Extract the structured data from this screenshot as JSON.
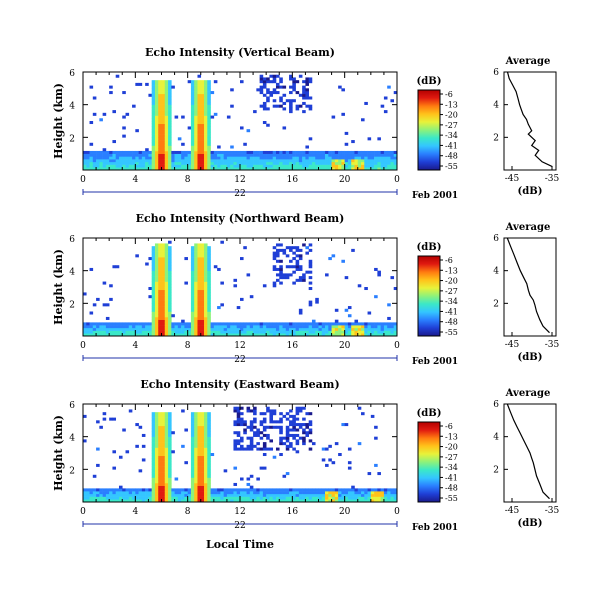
{
  "colors": {
    "colormap": [
      "#1a1a8c",
      "#1f3fd6",
      "#2a7fff",
      "#34c6ff",
      "#3be8c8",
      "#8ef27a",
      "#e8f23a",
      "#ffc21a",
      "#ff7a10",
      "#e01a10",
      "#b30000"
    ],
    "frame": "#000000",
    "blue_tick": "#2233aa"
  },
  "common": {
    "time_ticks": [
      "0",
      "4",
      "8",
      "12",
      "16",
      "20",
      "0"
    ],
    "date_label": "22",
    "date_suffix": "Feb 2001",
    "height_ticks": [
      "2",
      "4",
      "6"
    ],
    "height_label": "Height (km)",
    "colorbar_unit": "(dB)",
    "colorbar_ticks": [
      "-6",
      "-13",
      "-20",
      "-27",
      "-34",
      "-41",
      "-48",
      "-55"
    ],
    "avg_title": "Average",
    "avg_unit": "(dB)",
    "avg_y_ticks": [
      "2",
      "4",
      "6"
    ],
    "xlabel": "Local Time"
  },
  "chart_data": [
    {
      "type": "heatmap",
      "title": "Echo Intensity (Vertical Beam)",
      "xlabel": "",
      "ylabel": "Height (km)",
      "xlim": [
        0,
        24
      ],
      "ylim": [
        0,
        6
      ],
      "zlim": [
        -55,
        -6
      ],
      "zlabel": "(dB)",
      "features": {
        "plumes": [
          {
            "center_hour": 6.0,
            "top_km": 5.5
          },
          {
            "center_hour": 9.0,
            "top_km": 5.5
          }
        ],
        "upper_patch": {
          "hours": [
            13.5,
            17.5
          ],
          "km": [
            3.6,
            5.8
          ]
        },
        "boundary_layer_km": 1.1,
        "late_cells_hours": [
          19.5,
          21.0
        ]
      }
    },
    {
      "type": "line",
      "title": "Average",
      "xlabel": "(dB)",
      "ylabel": "",
      "xticks": [
        "-45",
        "-35"
      ],
      "xlim": [
        -48,
        -33
      ],
      "ylim": [
        0,
        6
      ],
      "x": [
        -47,
        -46.5,
        -45.5,
        -44.5,
        -44,
        -43.5,
        -43,
        -42.5,
        -41.5,
        -41,
        -40.5,
        -40,
        -41,
        -40,
        -39,
        -40,
        -38,
        -39,
        -37,
        -34
      ],
      "y": [
        6.0,
        5.6,
        5.2,
        4.8,
        4.4,
        4.0,
        3.7,
        3.4,
        3.1,
        2.8,
        2.6,
        2.4,
        2.2,
        2.0,
        1.8,
        1.5,
        1.2,
        0.9,
        0.5,
        0.2
      ]
    },
    {
      "type": "heatmap",
      "title": "Echo Intensity (Northward Beam)",
      "xlabel": "",
      "ylabel": "Height (km)",
      "xlim": [
        0,
        24
      ],
      "ylim": [
        0,
        6
      ],
      "zlim": [
        -55,
        -6
      ],
      "zlabel": "(dB)",
      "features": {
        "plumes": [
          {
            "center_hour": 6.0,
            "top_km": 5.6
          },
          {
            "center_hour": 9.0,
            "top_km": 5.6
          }
        ],
        "upper_patch": {
          "hours": [
            14.5,
            17.5
          ],
          "km": [
            3.2,
            5.7
          ]
        },
        "boundary_layer_km": 0.8,
        "late_cells_hours": [
          19.5,
          21.0
        ]
      }
    },
    {
      "type": "line",
      "title": "Average",
      "xlabel": "(dB)",
      "ylabel": "",
      "xticks": [
        "-45",
        "-35"
      ],
      "xlim": [
        -48,
        -32
      ],
      "ylim": [
        0,
        6
      ],
      "x": [
        -47,
        -46,
        -45,
        -44,
        -43,
        -42,
        -41,
        -40.5,
        -40,
        -39,
        -38.5,
        -38,
        -37,
        -36,
        -34
      ],
      "y": [
        6.0,
        5.5,
        5.0,
        4.5,
        4.0,
        3.6,
        3.2,
        2.8,
        2.5,
        2.2,
        1.9,
        1.5,
        1.0,
        0.6,
        0.2
      ]
    },
    {
      "type": "heatmap",
      "title": "Echo Intensity (Eastward Beam)",
      "xlabel": "Local Time",
      "ylabel": "Height (km)",
      "xlim": [
        0,
        24
      ],
      "ylim": [
        0,
        6
      ],
      "zlim": [
        -55,
        -6
      ],
      "zlabel": "(dB)",
      "features": {
        "plumes": [
          {
            "center_hour": 6.0,
            "top_km": 5.5
          },
          {
            "center_hour": 9.0,
            "top_km": 5.5
          }
        ],
        "upper_patch": {
          "hours": [
            11.5,
            17.5
          ],
          "km": [
            3.2,
            5.8
          ]
        },
        "boundary_layer_km": 0.8,
        "late_cells_hours": [
          19.0,
          22.5
        ]
      }
    },
    {
      "type": "line",
      "title": "Average",
      "xlabel": "(dB)",
      "ylabel": "",
      "xticks": [
        "-45",
        "-35"
      ],
      "xlim": [
        -48,
        -32
      ],
      "ylim": [
        0,
        6
      ],
      "x": [
        -47,
        -46,
        -45,
        -44,
        -43,
        -42,
        -41,
        -40,
        -39.5,
        -39,
        -38.5,
        -38,
        -37,
        -36,
        -34
      ],
      "y": [
        6.0,
        5.5,
        5.0,
        4.6,
        4.2,
        3.8,
        3.4,
        3.0,
        2.7,
        2.4,
        2.0,
        1.6,
        1.1,
        0.6,
        0.2
      ]
    }
  ]
}
